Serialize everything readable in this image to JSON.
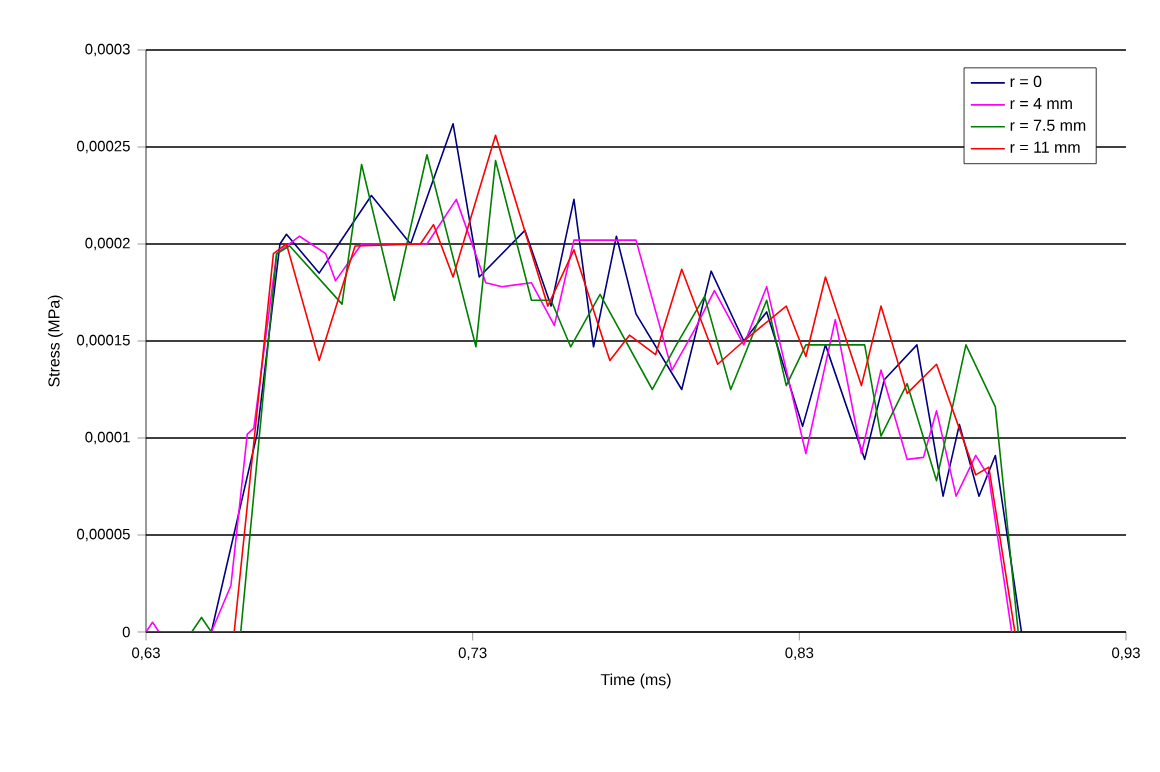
{
  "chart_data": {
    "type": "line",
    "xlabel": "Time (ms)",
    "ylabel": "Stress (MPa)",
    "xlim": [
      0.63,
      0.93
    ],
    "ylim": [
      0,
      0.0003
    ],
    "xticks": [
      {
        "value": 0.63,
        "label": "0,63"
      },
      {
        "value": 0.73,
        "label": "0,73"
      },
      {
        "value": 0.83,
        "label": "0,83"
      },
      {
        "value": 0.93,
        "label": "0,93"
      }
    ],
    "yticks": [
      0,
      {
        "value": 5e-05,
        "label": "0,00005"
      },
      {
        "value": 0.0001,
        "label": "0,0001"
      },
      {
        "value": 0.00015,
        "label": "0,00015"
      },
      {
        "value": 0.0002,
        "label": "0,0002"
      },
      {
        "value": 0.00025,
        "label": "0,00025"
      },
      {
        "value": 0.0003,
        "label": "0,0003"
      }
    ],
    "grid": "y",
    "legend": "top right",
    "marker": "none",
    "line_style": "solid",
    "series": [
      {
        "name": "r = 0",
        "color": "#000080",
        "x": [
          0.63,
          0.65,
          0.664,
          0.671,
          0.673,
          0.683,
          0.699,
          0.711,
          0.724,
          0.732,
          0.746,
          0.754,
          0.761,
          0.767,
          0.774,
          0.78,
          0.794,
          0.803,
          0.813,
          0.82,
          0.831,
          0.838,
          0.85,
          0.856,
          0.866,
          0.874,
          0.879,
          0.885,
          0.89,
          0.898
        ],
        "values": [
          0,
          0,
          0.000102,
          0.0002,
          0.000205,
          0.000185,
          0.000225,
          0.0002,
          0.000262,
          0.000183,
          0.000207,
          0.000168,
          0.000223,
          0.000147,
          0.000204,
          0.000164,
          0.000125,
          0.000186,
          0.00015,
          0.000165,
          0.000106,
          0.000148,
          8.9e-05,
          0.00013,
          0.000148,
          7e-05,
          0.000107,
          7e-05,
          9.1e-05,
          0
        ]
      },
      {
        "name": "r = 4 mm",
        "color": "#ff00ff",
        "x": [
          0.63,
          0.632,
          0.634,
          0.65,
          0.656,
          0.661,
          0.663,
          0.67,
          0.677,
          0.685,
          0.688,
          0.696,
          0.716,
          0.725,
          0.734,
          0.739,
          0.748,
          0.755,
          0.761,
          0.78,
          0.791,
          0.798,
          0.804,
          0.813,
          0.82,
          0.832,
          0.841,
          0.849,
          0.855,
          0.863,
          0.868,
          0.872,
          0.878,
          0.884,
          0.888,
          0.895
        ],
        "values": [
          0,
          5e-06,
          0,
          0,
          2.4e-05,
          0.000102,
          0.000105,
          0.000195,
          0.000204,
          0.000195,
          0.000181,
          0.0002,
          0.0002,
          0.000223,
          0.00018,
          0.000178,
          0.00018,
          0.000158,
          0.000202,
          0.000202,
          0.000135,
          0.000156,
          0.000176,
          0.000148,
          0.000178,
          9.2e-05,
          0.000161,
          9.2e-05,
          0.000135,
          8.9e-05,
          9e-05,
          0.000114,
          7e-05,
          9.1e-05,
          8e-05,
          0
        ]
      },
      {
        "name": "r = 7.5 mm",
        "color": "#008000",
        "x": [
          0.63,
          0.644,
          0.647,
          0.65,
          0.659,
          0.67,
          0.674,
          0.69,
          0.696,
          0.706,
          0.716,
          0.731,
          0.737,
          0.748,
          0.754,
          0.76,
          0.769,
          0.785,
          0.792,
          0.801,
          0.809,
          0.82,
          0.826,
          0.832,
          0.85,
          0.855,
          0.863,
          0.872,
          0.881,
          0.89,
          0.897
        ],
        "values": [
          0,
          0,
          7.5e-06,
          0,
          0,
          0.000195,
          0.000199,
          0.000169,
          0.000241,
          0.000171,
          0.000246,
          0.000147,
          0.000243,
          0.000171,
          0.000171,
          0.000147,
          0.000174,
          0.000125,
          0.000147,
          0.000173,
          0.000125,
          0.000171,
          0.000127,
          0.000148,
          0.000148,
          0.000101,
          0.000128,
          7.8e-05,
          0.000148,
          0.000116,
          0
        ]
      },
      {
        "name": "r = 11 mm",
        "color": "#ff0000",
        "x": [
          0.63,
          0.657,
          0.669,
          0.673,
          0.683,
          0.694,
          0.714,
          0.718,
          0.724,
          0.737,
          0.753,
          0.761,
          0.772,
          0.778,
          0.786,
          0.794,
          0.805,
          0.813,
          0.826,
          0.832,
          0.838,
          0.849,
          0.855,
          0.863,
          0.872,
          0.884,
          0.888,
          0.896
        ],
        "values": [
          0,
          0,
          0.000195,
          0.0002,
          0.00014,
          0.000199,
          0.0002,
          0.00021,
          0.000183,
          0.000256,
          0.000168,
          0.000197,
          0.00014,
          0.000153,
          0.000143,
          0.000187,
          0.000138,
          0.00015,
          0.000168,
          0.000142,
          0.000183,
          0.000127,
          0.000168,
          0.000123,
          0.000138,
          8.1e-05,
          8.5e-05,
          0
        ]
      }
    ]
  }
}
